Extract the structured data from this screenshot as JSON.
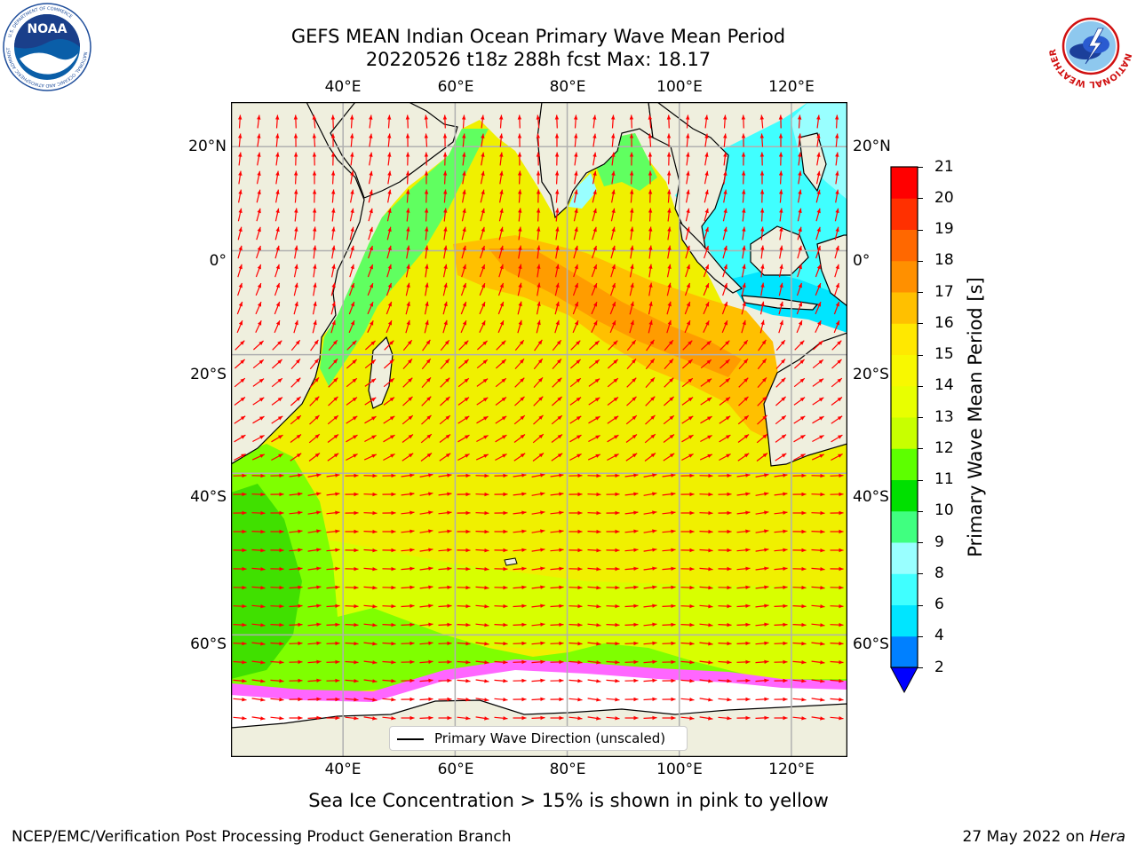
{
  "header": {
    "title_line1": "GEFS MEAN Indian Ocean Primary Wave Mean Period",
    "title_line2": "20220526 t18z 288h fcst   Max: 18.17"
  },
  "logos": {
    "noaa_text": "NOAA",
    "noaa_ring_text": "NATIONAL OCEANIC AND ATMOSPHERIC ADMINISTRATION",
    "noaa_ring_bottom": "U.S. DEPARTMENT OF COMMERCE",
    "nws_ring_text": "NATIONAL WEATHER SERVICE"
  },
  "map": {
    "lon_ticks_top": [
      "40°E",
      "60°E",
      "80°E",
      "100°E",
      "120°E"
    ],
    "lon_ticks_bottom": [
      "40°E",
      "60°E",
      "80°E",
      "100°E",
      "120°E"
    ],
    "lat_ticks_left": [
      "20°N",
      "0°",
      "20°S",
      "40°S",
      "60°S"
    ],
    "lat_ticks_right": [
      "20°N",
      "0°",
      "20°S",
      "40°S",
      "60°S"
    ],
    "lon_values": [
      40,
      60,
      80,
      100,
      120
    ],
    "lat_values": [
      20,
      0,
      -20,
      -40,
      -60
    ],
    "extent": {
      "lon_min": 20,
      "lon_max": 130,
      "lat_min": -70,
      "lat_max": 28
    },
    "land_color": "#efefde",
    "ice_color": "#ffffff",
    "arrow_color": "#ff0000",
    "grid_color": "#b0b0b0"
  },
  "colorbar": {
    "title": "Primary Wave Mean Period [s]",
    "levels": [
      2,
      4,
      6,
      8,
      9,
      10,
      11,
      12,
      13,
      14,
      15,
      16,
      17,
      18,
      19,
      20,
      21
    ],
    "labels": [
      "2",
      "4",
      "6",
      "8",
      "9",
      "10",
      "11",
      "12",
      "13",
      "14",
      "15",
      "16",
      "17",
      "18",
      "19",
      "20",
      "21"
    ],
    "colors": [
      "#0080ff",
      "#00e5ff",
      "#40ffff",
      "#99ffff",
      "#40ff80",
      "#00e000",
      "#5dff00",
      "#c8ff00",
      "#e8ff00",
      "#f8f800",
      "#ffe800",
      "#ffc000",
      "#ff9000",
      "#ff6800",
      "#ff3000",
      "#ff0000"
    ],
    "under_color": "#0000ff"
  },
  "legend": {
    "label": "Primary Wave Direction (unscaled)"
  },
  "caption": "Sea Ice Concentration > 15% is shown in pink to yellow",
  "footer": {
    "left": "NCEP/EMC/Verification Post Processing Product Generation Branch",
    "right_prefix": "27 May 2022 on ",
    "right_machine": "Hera"
  }
}
